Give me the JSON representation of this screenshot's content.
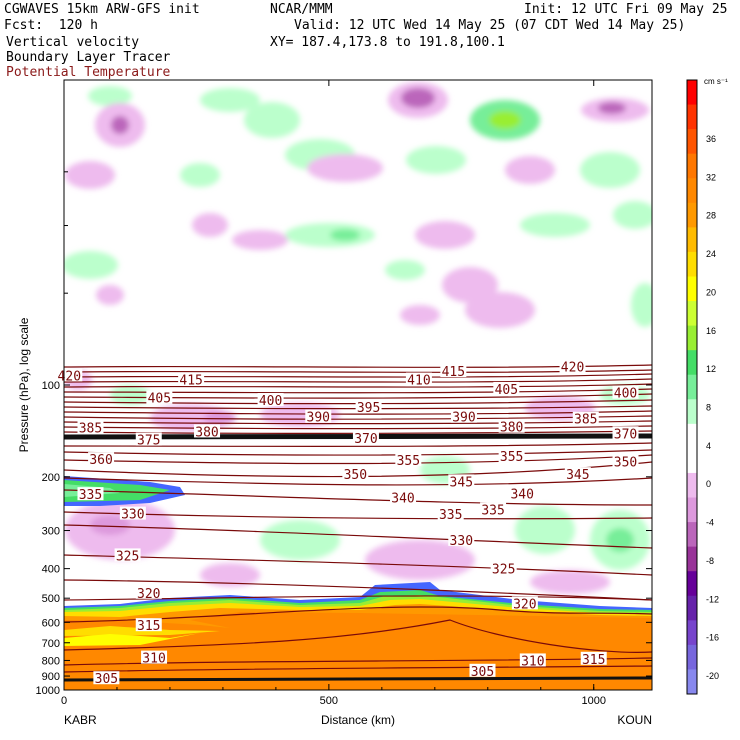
{
  "header": {
    "title": "CGWAVES 15km ARW-GFS init",
    "center": "NCAR/MMM",
    "init": "Init: 12 UTC Fri 09 May 25",
    "fcst": "Fcst:  120 h",
    "valid": "Valid: 12 UTC Wed 14 May 25 (07 CDT Wed 14 May 25)",
    "field1": "Vertical velocity",
    "field2": "Boundary Layer Tracer",
    "field3": "Potential Temperature",
    "xy": "XY= 187.4,173.8 to 191.8,100.1"
  },
  "colors": {
    "theta": "#7a0a0a",
    "tracer": "#000000"
  },
  "chart_data": {
    "type": "cross-section",
    "xlabel": "Distance (km)",
    "ylabel": "Pressure (hPa), log scale",
    "xlim": [
      0,
      1110
    ],
    "ylim": [
      1000,
      10
    ],
    "x_ticks": [
      0,
      500,
      1000
    ],
    "x_tick_labels": [
      "0",
      "500",
      "1000"
    ],
    "y_ticks": [
      100,
      200,
      300,
      400,
      500,
      600,
      700,
      800,
      900,
      1000
    ],
    "y_tick_labels": [
      "100",
      "200",
      "300",
      "400",
      "500",
      "600",
      "700",
      "800",
      "900",
      "1000"
    ],
    "endpoints": {
      "left": "KABR",
      "right": "KOUN"
    },
    "colorbar": {
      "unit": "cm s⁻¹",
      "labels": [
        36,
        32,
        28,
        24,
        20,
        16,
        12,
        8,
        4,
        0,
        -4,
        -8,
        -12,
        -16,
        -20
      ],
      "colors": [
        "#ff0000",
        "#ff3300",
        "#ff5500",
        "#ff7700",
        "#ff8800",
        "#ff9900",
        "#ffbb00",
        "#ffdd00",
        "#ffff00",
        "#ccff33",
        "#99ee33",
        "#44dd66",
        "#77ee99",
        "#bbffcc",
        "#ffffff",
        "#ffffff",
        "#eebbee",
        "#dd99dd",
        "#bb66bb",
        "#993399",
        "#660099",
        "#6622aa",
        "#7744cc",
        "#7766dd",
        "#8888ee"
      ]
    },
    "theta_labels": [
      {
        "t": "420",
        "x": 10,
        "p": 93
      },
      {
        "t": "415",
        "x": 240,
        "p": 96
      },
      {
        "t": "410",
        "x": 670,
        "p": 96
      },
      {
        "t": "415",
        "x": 735,
        "p": 90
      },
      {
        "t": "420",
        "x": 960,
        "p": 87
      },
      {
        "t": "405",
        "x": 180,
        "p": 110
      },
      {
        "t": "400",
        "x": 390,
        "p": 112
      },
      {
        "t": "405",
        "x": 835,
        "p": 103
      },
      {
        "t": "400",
        "x": 1060,
        "p": 106
      },
      {
        "t": "390",
        "x": 480,
        "p": 127
      },
      {
        "t": "395",
        "x": 575,
        "p": 118
      },
      {
        "t": "390",
        "x": 755,
        "p": 127
      },
      {
        "t": "385",
        "x": 50,
        "p": 138
      },
      {
        "t": "380",
        "x": 270,
        "p": 142
      },
      {
        "t": "380",
        "x": 845,
        "p": 137
      },
      {
        "t": "385",
        "x": 985,
        "p": 129
      },
      {
        "t": "375",
        "x": 160,
        "p": 151
      },
      {
        "t": "370",
        "x": 570,
        "p": 149
      },
      {
        "t": "370",
        "x": 1060,
        "p": 144
      },
      {
        "t": "360",
        "x": 70,
        "p": 175
      },
      {
        "t": "355",
        "x": 650,
        "p": 176
      },
      {
        "t": "355",
        "x": 845,
        "p": 171
      },
      {
        "t": "350",
        "x": 550,
        "p": 196
      },
      {
        "t": "345",
        "x": 750,
        "p": 207
      },
      {
        "t": "345",
        "x": 970,
        "p": 196
      },
      {
        "t": "350",
        "x": 1060,
        "p": 178
      },
      {
        "t": "340",
        "x": 640,
        "p": 234
      },
      {
        "t": "340",
        "x": 865,
        "p": 227
      },
      {
        "t": "335",
        "x": 50,
        "p": 228
      },
      {
        "t": "335",
        "x": 730,
        "p": 265
      },
      {
        "t": "335",
        "x": 810,
        "p": 256
      },
      {
        "t": "330",
        "x": 130,
        "p": 264
      },
      {
        "t": "330",
        "x": 750,
        "p": 322
      },
      {
        "t": "325",
        "x": 120,
        "p": 362
      },
      {
        "t": "325",
        "x": 830,
        "p": 400
      },
      {
        "t": "320",
        "x": 160,
        "p": 480
      },
      {
        "t": "320",
        "x": 870,
        "p": 520
      },
      {
        "t": "315",
        "x": 160,
        "p": 613
      },
      {
        "t": "310",
        "x": 170,
        "p": 783
      },
      {
        "t": "310",
        "x": 885,
        "p": 800
      },
      {
        "t": "315",
        "x": 1000,
        "p": 790
      },
      {
        "t": "305",
        "x": 80,
        "p": 915
      },
      {
        "t": "305",
        "x": 790,
        "p": 865
      }
    ]
  }
}
